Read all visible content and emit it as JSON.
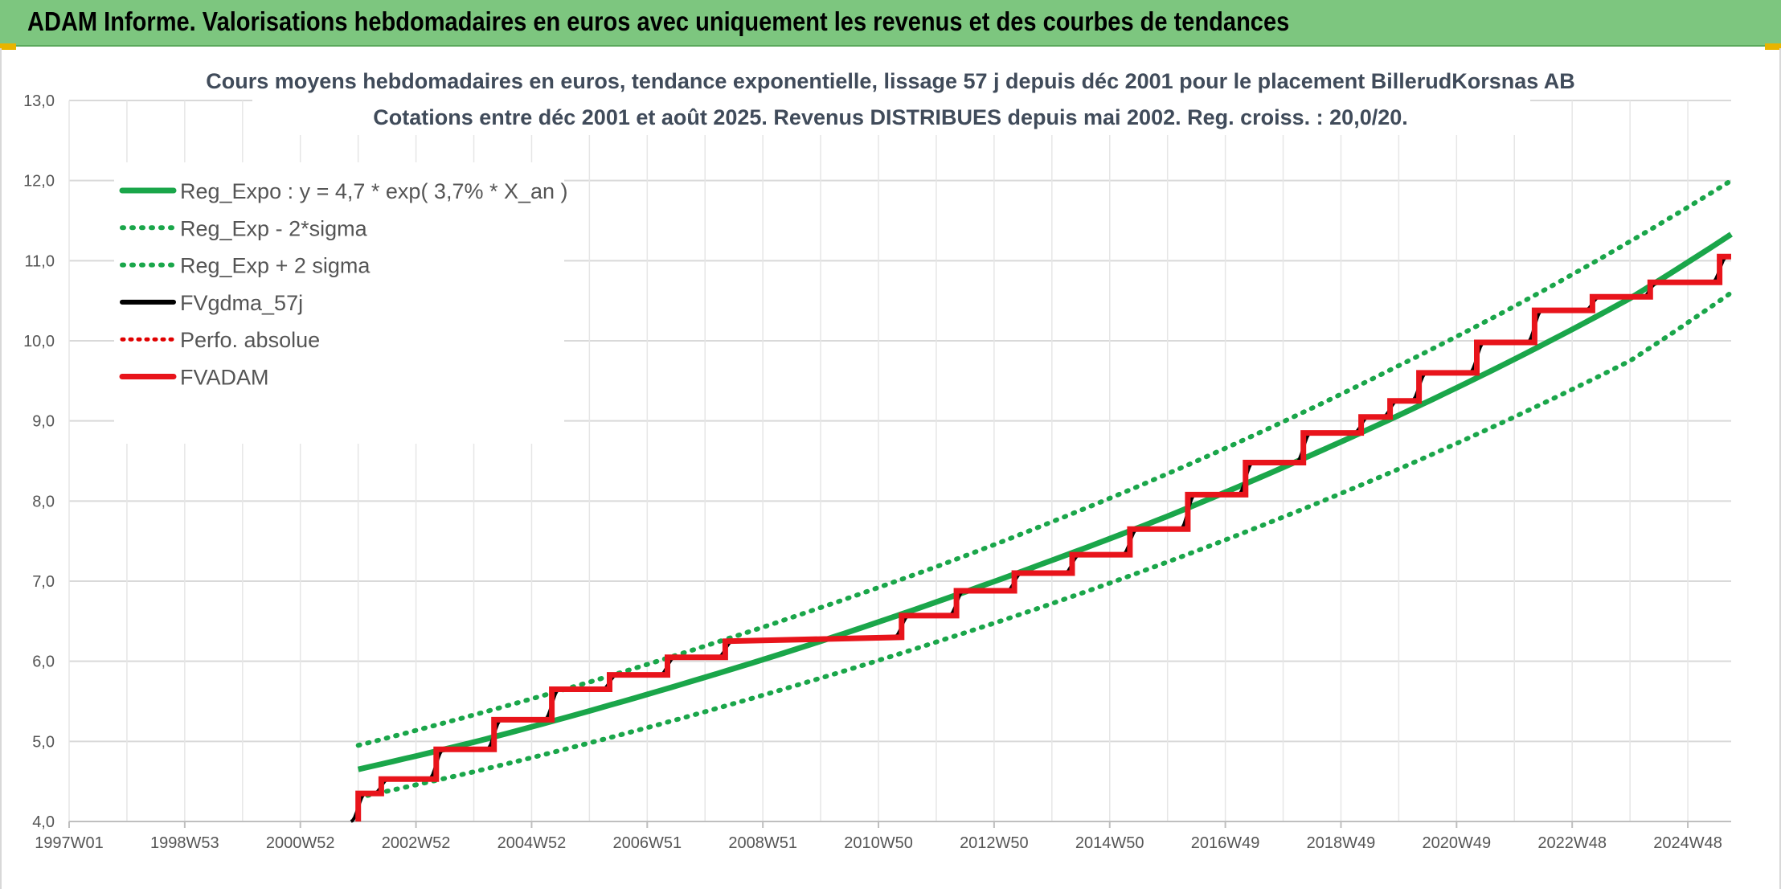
{
  "banner": {
    "title": "ADAM Informe. Valorisations hebdomadaires en euros avec uniquement les revenus et des courbes de tendances"
  },
  "colors": {
    "banner_bg": "#7dc67f",
    "reg_expo": "#1aa64a",
    "sigma": "#1aa64a",
    "fvgdma": "#000000",
    "perfo": "#e00000",
    "fvadam": "#e8141b",
    "grid": "#d9d9d9"
  },
  "chart_data": {
    "type": "line",
    "title_line1": "Cours moyens hebdomadaires en euros, tendance exponentielle, lissage 57 j depuis déc 2001 pour le placement BillerudKorsnas AB",
    "title_line2": "Cotations entre déc 2001 et août 2025. Revenus DISTRIBUES depuis mai 2002. Reg. croiss. : 20,0/20.",
    "ylim": [
      4.0,
      13.0
    ],
    "y_ticks": [
      "4,0",
      "5,0",
      "6,0",
      "7,0",
      "8,0",
      "9,0",
      "10,0",
      "11,0",
      "12,0",
      "13,0"
    ],
    "x_range_years": [
      1997.0,
      2025.75
    ],
    "x_ticks": [
      {
        "label": "1997W01",
        "year": 1997.0
      },
      {
        "label": "1998W53",
        "year": 1999.0
      },
      {
        "label": "2000W52",
        "year": 2001.0
      },
      {
        "label": "2002W52",
        "year": 2003.0
      },
      {
        "label": "2004W52",
        "year": 2005.0
      },
      {
        "label": "2006W51",
        "year": 2007.0
      },
      {
        "label": "2008W51",
        "year": 2009.0
      },
      {
        "label": "2010W50",
        "year": 2011.0
      },
      {
        "label": "2012W50",
        "year": 2013.0
      },
      {
        "label": "2014W50",
        "year": 2015.0
      },
      {
        "label": "2016W49",
        "year": 2017.0
      },
      {
        "label": "2018W49",
        "year": 2019.0
      },
      {
        "label": "2020W49",
        "year": 2021.0
      },
      {
        "label": "2022W48",
        "year": 2023.0
      },
      {
        "label": "2024W48",
        "year": 2025.0
      }
    ],
    "legend": [
      {
        "label": "Reg_Expo : y = 4,7 * exp( 3,7% *  X_an )",
        "style": "solid-green"
      },
      {
        "label": "Reg_Exp - 2*sigma",
        "style": "dotted-green"
      },
      {
        "label": "Reg_Exp + 2 sigma",
        "style": "dotted-green"
      },
      {
        "label": "FVgdma_57j",
        "style": "solid-black"
      },
      {
        "label": "Perfo. absolue",
        "style": "dotted-red"
      },
      {
        "label": "FVADAM",
        "style": "solid-red"
      }
    ],
    "series": {
      "reg_expo": {
        "x": [
          2002.0,
          2004.0,
          2006.0,
          2008.0,
          2010.0,
          2012.0,
          2014.0,
          2016.0,
          2018.0,
          2020.0,
          2022.0,
          2024.0,
          2025.75
        ],
        "y": [
          4.65,
          4.99,
          5.38,
          5.8,
          6.25,
          6.74,
          7.26,
          7.81,
          8.42,
          9.07,
          9.77,
          10.53,
          11.33
        ]
      },
      "reg_minus_2sigma": {
        "x": [
          2002.0,
          2004.0,
          2006.0,
          2008.0,
          2010.0,
          2012.0,
          2014.0,
          2016.0,
          2018.0,
          2020.0,
          2022.0,
          2024.0,
          2025.75
        ],
        "y": [
          4.3,
          4.62,
          4.98,
          5.37,
          5.79,
          6.24,
          6.72,
          7.24,
          7.8,
          8.4,
          9.05,
          9.75,
          10.6
        ]
      },
      "reg_plus_2sigma": {
        "x": [
          2002.0,
          2004.0,
          2006.0,
          2008.0,
          2010.0,
          2012.0,
          2014.0,
          2016.0,
          2018.0,
          2020.0,
          2022.0,
          2024.0,
          2025.75
        ],
        "y": [
          4.95,
          5.33,
          5.74,
          6.19,
          6.67,
          7.18,
          7.74,
          8.34,
          8.99,
          9.69,
          10.43,
          11.24,
          12.0
        ]
      },
      "fvadam_steps": {
        "start": [
          2002.0,
          4.0
        ],
        "points": [
          [
            2002.0,
            4.35
          ],
          [
            2002.4,
            4.35
          ],
          [
            2002.4,
            4.53
          ],
          [
            2003.35,
            4.53
          ],
          [
            2003.35,
            4.9
          ],
          [
            2004.35,
            4.9
          ],
          [
            2004.35,
            5.27
          ],
          [
            2005.35,
            5.27
          ],
          [
            2005.35,
            5.65
          ],
          [
            2006.35,
            5.65
          ],
          [
            2006.35,
            5.83
          ],
          [
            2007.35,
            5.83
          ],
          [
            2007.35,
            6.05
          ],
          [
            2008.35,
            6.05
          ],
          [
            2008.35,
            6.25
          ],
          [
            2011.4,
            6.3
          ],
          [
            2011.4,
            6.57
          ],
          [
            2012.35,
            6.57
          ],
          [
            2012.35,
            6.88
          ],
          [
            2013.35,
            6.88
          ],
          [
            2013.35,
            7.1
          ],
          [
            2014.35,
            7.1
          ],
          [
            2014.35,
            7.33
          ],
          [
            2015.35,
            7.33
          ],
          [
            2015.35,
            7.65
          ],
          [
            2016.35,
            7.65
          ],
          [
            2016.35,
            8.08
          ],
          [
            2017.35,
            8.08
          ],
          [
            2017.35,
            8.48
          ],
          [
            2018.35,
            8.48
          ],
          [
            2018.35,
            8.85
          ],
          [
            2019.35,
            8.85
          ],
          [
            2019.35,
            9.05
          ],
          [
            2019.85,
            9.05
          ],
          [
            2019.85,
            9.25
          ],
          [
            2020.35,
            9.25
          ],
          [
            2020.35,
            9.6
          ],
          [
            2021.35,
            9.6
          ],
          [
            2021.35,
            9.98
          ],
          [
            2022.35,
            9.98
          ],
          [
            2022.35,
            10.38
          ],
          [
            2023.35,
            10.38
          ],
          [
            2023.35,
            10.55
          ],
          [
            2024.35,
            10.55
          ],
          [
            2024.35,
            10.73
          ],
          [
            2025.55,
            10.73
          ],
          [
            2025.55,
            11.05
          ],
          [
            2025.75,
            11.05
          ]
        ]
      }
    }
  }
}
